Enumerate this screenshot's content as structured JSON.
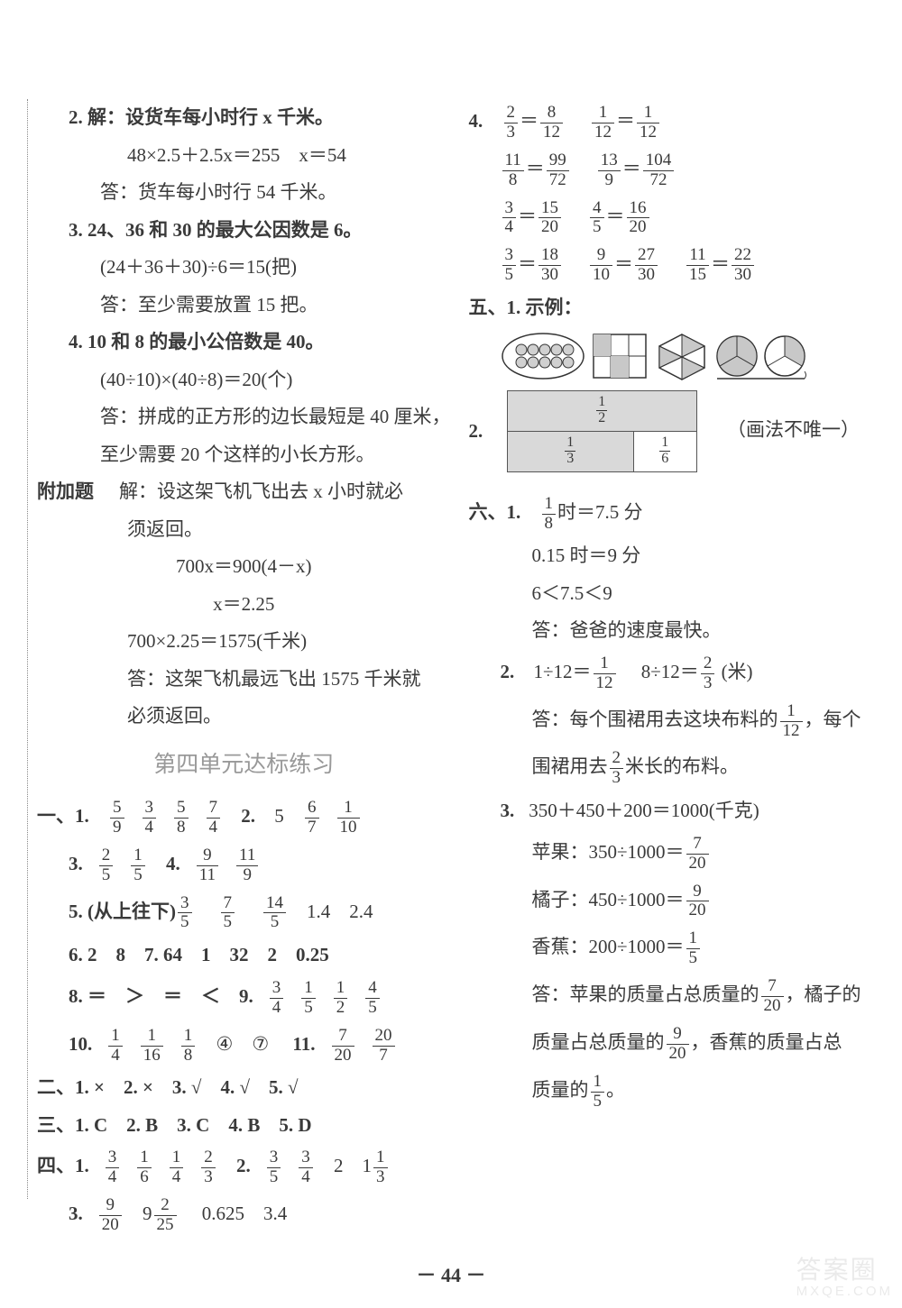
{
  "left": {
    "p2a": "2. 解：设货车每小时行 x 千米。",
    "p2b": "48×2.5＋2.5x＝255　x＝54",
    "p2c": "答：货车每小时行 54 千米。",
    "p3a": "3. 24、36 和 30 的最大公因数是 6。",
    "p3b": "(24＋36＋30)÷6＝15(把)",
    "p3c": "答：至少需要放置 15 把。",
    "p4a": "4. 10 和 8 的最小公倍数是 40。",
    "p4b": "(40÷10)×(40÷8)＝20(个)",
    "p4c": "答：拼成的正方形的边长最短是 40 厘米，",
    "p4d": "至少需要 20 个这样的小长方形。",
    "fja_label": "附加题",
    "fja1": "解：设这架飞机飞出去 x 小时就必",
    "fja2": "须返回。",
    "fja3": "700x＝900(4－x)",
    "fja4": "x＝2.25",
    "fja5": "700×2.25＝1575(千米)",
    "fja6": "答：这架飞机最远飞出 1575 千米就",
    "fja7": "必须返回。",
    "heading": "第四单元达标练习",
    "s1_1_label": "一、1.",
    "s1_1_f": [
      [
        "5",
        "9"
      ],
      [
        "3",
        "4"
      ],
      [
        "5",
        "8"
      ],
      [
        "7",
        "4"
      ]
    ],
    "s1_2_label": "2.",
    "s1_2_v": "5",
    "s1_2_f": [
      [
        "6",
        "7"
      ],
      [
        "1",
        "10"
      ]
    ],
    "s1_3_label": "3.",
    "s1_3_f": [
      [
        "2",
        "5"
      ],
      [
        "1",
        "5"
      ]
    ],
    "s1_4_label": "4.",
    "s1_4_f": [
      [
        "9",
        "11"
      ],
      [
        "11",
        "9"
      ]
    ],
    "s1_5_label": "5. (从上往下)",
    "s1_5_f": [
      [
        "3",
        "5"
      ],
      [
        "7",
        "5"
      ],
      [
        "14",
        "5"
      ]
    ],
    "s1_5_t": "　1.4　2.4",
    "s1_6": "6. 2　8　7. 64　1　32　2　0.25",
    "s1_8_label": "8. ＝　＞　＝　＜　9.",
    "s1_9_f": [
      [
        "3",
        "4"
      ],
      [
        "1",
        "5"
      ],
      [
        "1",
        "2"
      ],
      [
        "4",
        "5"
      ]
    ],
    "s1_10_label": "10.",
    "s1_10_f": [
      [
        "1",
        "4"
      ],
      [
        "1",
        "16"
      ],
      [
        "1",
        "8"
      ]
    ],
    "s1_10_t": "④　⑦　",
    "s1_11_label": "11.",
    "s1_11_f": [
      [
        "7",
        "20"
      ],
      [
        "20",
        "7"
      ]
    ],
    "s2": "二、1. ×　2. ×　3. √　4. √　5. √",
    "s3": "三、1. C　2. B　3. C　4. B　5. D",
    "s4_1_label": "四、1.",
    "s4_1_f": [
      [
        "3",
        "4"
      ],
      [
        "1",
        "6"
      ],
      [
        "1",
        "4"
      ],
      [
        "2",
        "3"
      ]
    ],
    "s4_2_label": "2.",
    "s4_2_f": [
      [
        "3",
        "5"
      ],
      [
        "3",
        "4"
      ]
    ],
    "s4_2_t": "2　1",
    "s4_2_f2": [
      "1",
      "3"
    ],
    "s4_3_label": "3.",
    "s4_3_f": [
      [
        "9",
        "20"
      ]
    ],
    "s4_3_t1": "9",
    "s4_3_f2": [
      "2",
      "25"
    ],
    "s4_3_t2": "　0.625　3.4"
  },
  "right": {
    "r4_label": "4.",
    "r4_rows": [
      [
        [
          "2",
          "3"
        ],
        [
          "8",
          "12"
        ],
        [
          "1",
          "12"
        ],
        [
          "1",
          "12"
        ]
      ],
      [
        [
          "11",
          "8"
        ],
        [
          "99",
          "72"
        ],
        [
          "13",
          "9"
        ],
        [
          "104",
          "72"
        ]
      ],
      [
        [
          "3",
          "4"
        ],
        [
          "15",
          "20"
        ],
        [
          "4",
          "5"
        ],
        [
          "16",
          "20"
        ]
      ],
      [
        [
          "3",
          "5"
        ],
        [
          "18",
          "30"
        ],
        [
          "9",
          "10"
        ],
        [
          "27",
          "30"
        ],
        [
          "11",
          "15"
        ],
        [
          "22",
          "30"
        ]
      ]
    ],
    "s5_label": "五、1. 示例：",
    "s5_note": "（画法不唯一）",
    "s5_2_label": "2.",
    "s5_2_half": [
      "1",
      "2"
    ],
    "s5_2_third": [
      "1",
      "3"
    ],
    "s5_2_sixth": [
      "1",
      "6"
    ],
    "s6_label": "六、1.",
    "s6_1_f": [
      "1",
      "8"
    ],
    "s6_1_t": "时＝7.5 分",
    "s6_1b": "0.15 时＝9 分",
    "s6_1c": "6＜7.5＜9",
    "s6_1d": "答：爸爸的速度最快。",
    "s6_2_label": "2.",
    "s6_2a_t1": "1÷12＝",
    "s6_2a_f1": [
      "1",
      "12"
    ],
    "s6_2a_t2": "　8÷12＝",
    "s6_2a_f2": [
      "2",
      "3"
    ],
    "s6_2a_t3": "(米)",
    "s6_2b_t1": "答：每个围裙用去这块布料的",
    "s6_2b_f1": [
      "1",
      "12"
    ],
    "s6_2b_t2": "，每个",
    "s6_2c_t1": "围裙用去",
    "s6_2c_f1": [
      "2",
      "3"
    ],
    "s6_2c_t2": "米长的布料。",
    "s6_3_label": "3.",
    "s6_3a": "350＋450＋200＝1000(千克)",
    "s6_3b_t": "苹果：350÷1000＝",
    "s6_3b_f": [
      "7",
      "20"
    ],
    "s6_3c_t": "橘子：450÷1000＝",
    "s6_3c_f": [
      "9",
      "20"
    ],
    "s6_3d_t": "香蕉：200÷1000＝",
    "s6_3d_f": [
      "1",
      "5"
    ],
    "s6_3e_t1": "答：苹果的质量占总质量的",
    "s6_3e_f1": [
      "7",
      "20"
    ],
    "s6_3e_t2": "，橘子的",
    "s6_3f_t1": "质量占总质量的",
    "s6_3f_f1": [
      "9",
      "20"
    ],
    "s6_3f_t2": "，香蕉的质量占总",
    "s6_3g_t1": "质量的",
    "s6_3g_f1": [
      "1",
      "5"
    ],
    "s6_3g_t2": "。"
  },
  "footer": "－ 44 －",
  "watermark_top": "答案圈",
  "watermark_bottom": "MXQE.COM"
}
